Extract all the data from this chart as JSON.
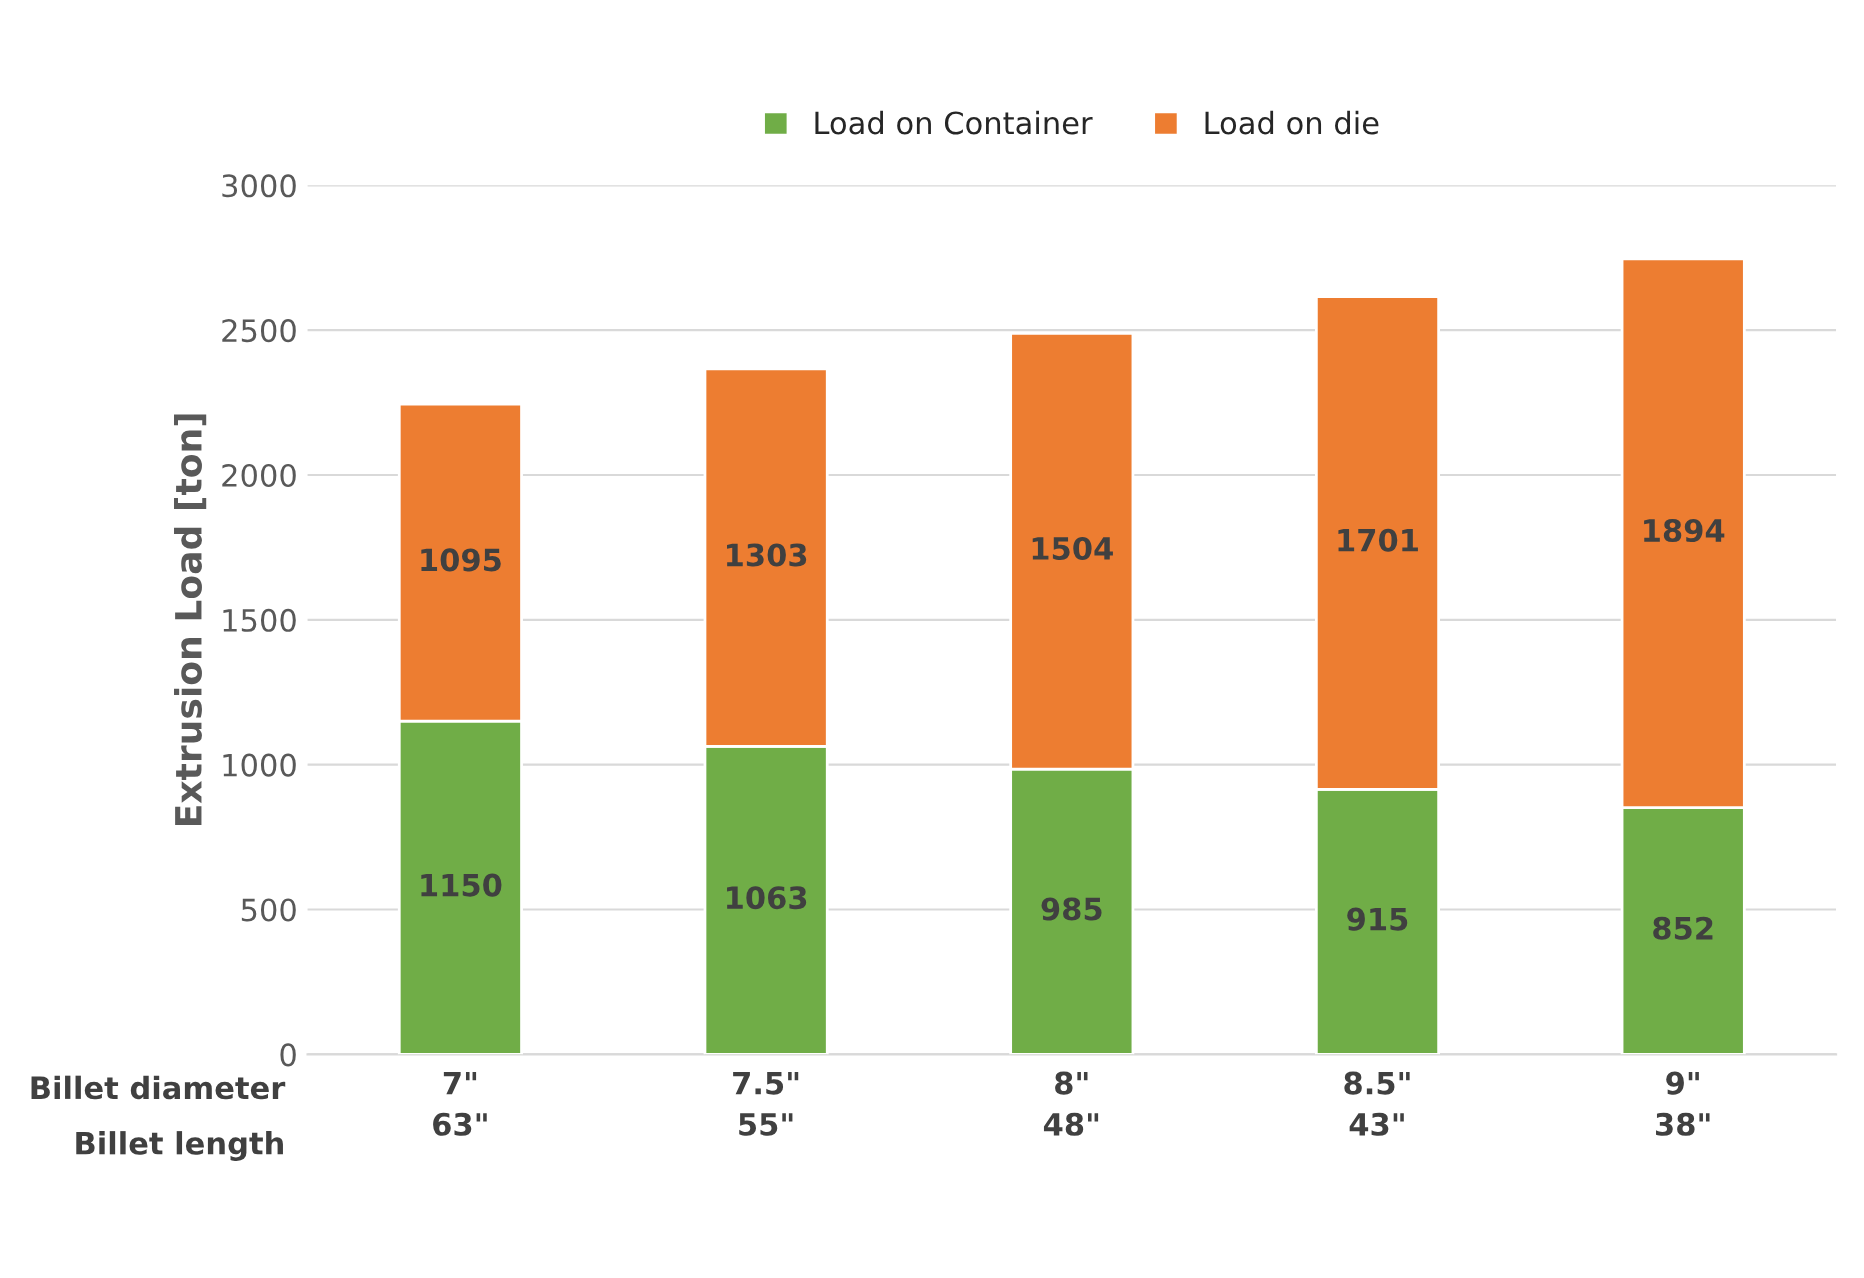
{
  "chart_data": {
    "type": "bar",
    "stacked": true,
    "ylabel": "Extrusion Load [ton]",
    "categories": [
      "7\"\n63\"",
      "7.5\"\n55\"",
      "8\"\n48\"",
      "8.5\"\n43\"",
      "9\"\n38\""
    ],
    "series": [
      {
        "name": "Load on Container",
        "color": "#70ad47",
        "values": [
          1150,
          1063,
          985,
          915,
          852
        ]
      },
      {
        "name": "Load on die",
        "color": "#ed7d31",
        "values": [
          1095,
          1303,
          1504,
          1701,
          1894
        ]
      }
    ],
    "ylim": [
      0,
      3000
    ],
    "yticks": [
      0,
      500,
      1000,
      1500,
      2000,
      2500,
      3000
    ],
    "grid": "y",
    "legend": "top",
    "data_labels": true,
    "annotations": [
      "Billet diameter",
      "Billet length"
    ]
  }
}
